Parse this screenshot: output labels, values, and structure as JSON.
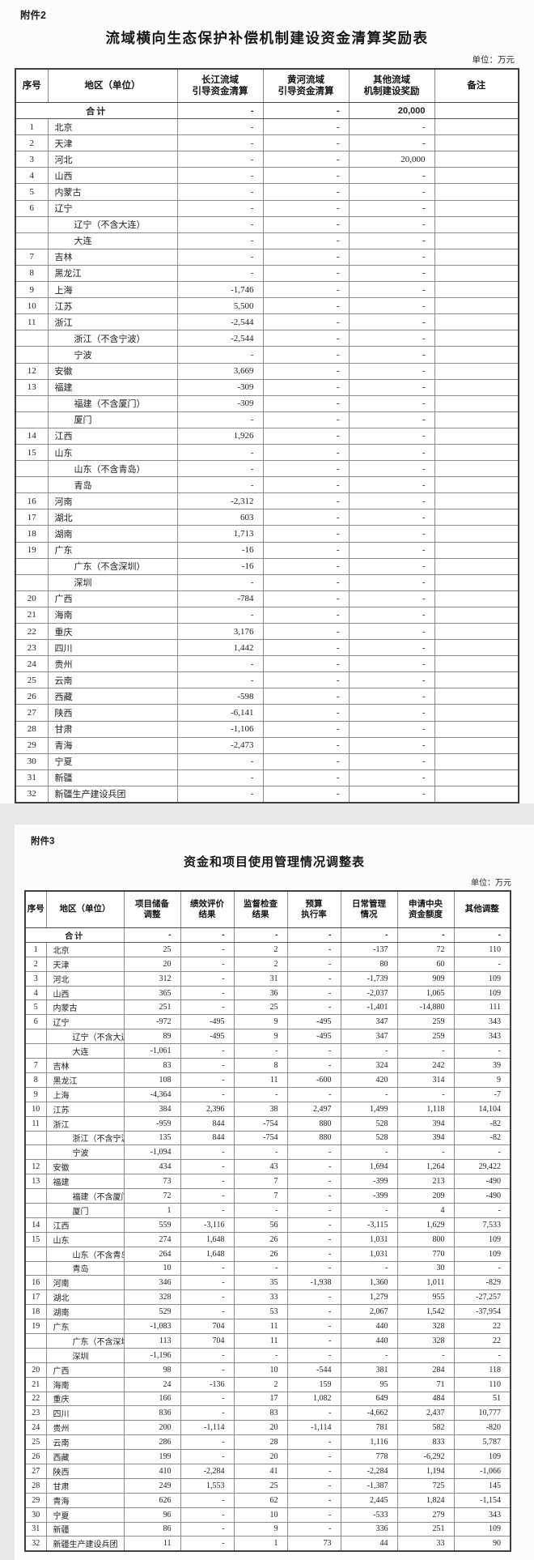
{
  "attachment2": {
    "tag": "附件2",
    "title": "流域横向生态保护补偿机制建设资金清算奖励表",
    "unit": "单位：万元",
    "columns": [
      "序号",
      "地区（单位）",
      "长江流域\n引导资金清算",
      "黄河流域\n引导资金清算",
      "其他流域\n机制建设奖励",
      "备注"
    ],
    "total_row": {
      "label": "合计",
      "values": [
        "-",
        "-",
        "20,000",
        ""
      ]
    },
    "rows": [
      {
        "seq": "1",
        "region": "北京",
        "indent": false,
        "values": [
          "-",
          "-",
          "-",
          ""
        ]
      },
      {
        "seq": "2",
        "region": "天津",
        "indent": false,
        "values": [
          "-",
          "-",
          "-",
          ""
        ]
      },
      {
        "seq": "3",
        "region": "河北",
        "indent": false,
        "values": [
          "-",
          "-",
          "20,000",
          ""
        ]
      },
      {
        "seq": "4",
        "region": "山西",
        "indent": false,
        "values": [
          "-",
          "-",
          "-",
          ""
        ]
      },
      {
        "seq": "5",
        "region": "内蒙古",
        "indent": false,
        "values": [
          "-",
          "-",
          "-",
          ""
        ]
      },
      {
        "seq": "6",
        "region": "辽宁",
        "indent": false,
        "values": [
          "-",
          "-",
          "-",
          ""
        ]
      },
      {
        "seq": "",
        "region": "辽宁（不含大连）",
        "indent": true,
        "values": [
          "-",
          "-",
          "-",
          ""
        ]
      },
      {
        "seq": "",
        "region": "大连",
        "indent": true,
        "values": [
          "-",
          "-",
          "-",
          ""
        ]
      },
      {
        "seq": "7",
        "region": "吉林",
        "indent": false,
        "values": [
          "-",
          "-",
          "-",
          ""
        ]
      },
      {
        "seq": "8",
        "region": "黑龙江",
        "indent": false,
        "values": [
          "-",
          "-",
          "-",
          ""
        ]
      },
      {
        "seq": "9",
        "region": "上海",
        "indent": false,
        "values": [
          "-1,746",
          "-",
          "-",
          ""
        ]
      },
      {
        "seq": "10",
        "region": "江苏",
        "indent": false,
        "values": [
          "5,500",
          "-",
          "-",
          ""
        ]
      },
      {
        "seq": "11",
        "region": "浙江",
        "indent": false,
        "values": [
          "-2,544",
          "-",
          "-",
          ""
        ]
      },
      {
        "seq": "",
        "region": "浙江（不含宁波）",
        "indent": true,
        "values": [
          "-2,544",
          "-",
          "-",
          ""
        ]
      },
      {
        "seq": "",
        "region": "宁波",
        "indent": true,
        "values": [
          "-",
          "-",
          "-",
          ""
        ]
      },
      {
        "seq": "12",
        "region": "安徽",
        "indent": false,
        "values": [
          "3,669",
          "-",
          "-",
          ""
        ]
      },
      {
        "seq": "13",
        "region": "福建",
        "indent": false,
        "values": [
          "-309",
          "-",
          "-",
          ""
        ]
      },
      {
        "seq": "",
        "region": "福建（不含厦门）",
        "indent": true,
        "values": [
          "-309",
          "-",
          "-",
          ""
        ]
      },
      {
        "seq": "",
        "region": "厦门",
        "indent": true,
        "values": [
          "-",
          "-",
          "-",
          ""
        ]
      },
      {
        "seq": "14",
        "region": "江西",
        "indent": false,
        "values": [
          "1,926",
          "-",
          "-",
          ""
        ]
      },
      {
        "seq": "15",
        "region": "山东",
        "indent": false,
        "values": [
          "-",
          "-",
          "-",
          ""
        ]
      },
      {
        "seq": "",
        "region": "山东（不含青岛）",
        "indent": true,
        "values": [
          "-",
          "-",
          "-",
          ""
        ]
      },
      {
        "seq": "",
        "region": "青岛",
        "indent": true,
        "values": [
          "-",
          "-",
          "-",
          ""
        ]
      },
      {
        "seq": "16",
        "region": "河南",
        "indent": false,
        "values": [
          "-2,312",
          "-",
          "-",
          ""
        ]
      },
      {
        "seq": "17",
        "region": "湖北",
        "indent": false,
        "values": [
          "603",
          "-",
          "-",
          ""
        ]
      },
      {
        "seq": "18",
        "region": "湖南",
        "indent": false,
        "values": [
          "1,713",
          "-",
          "-",
          ""
        ]
      },
      {
        "seq": "19",
        "region": "广东",
        "indent": false,
        "values": [
          "-16",
          "-",
          "-",
          ""
        ]
      },
      {
        "seq": "",
        "region": "广东（不含深圳）",
        "indent": true,
        "values": [
          "-16",
          "-",
          "-",
          ""
        ]
      },
      {
        "seq": "",
        "region": "深圳",
        "indent": true,
        "values": [
          "-",
          "-",
          "-",
          ""
        ]
      },
      {
        "seq": "20",
        "region": "广西",
        "indent": false,
        "values": [
          "-784",
          "-",
          "-",
          ""
        ]
      },
      {
        "seq": "21",
        "region": "海南",
        "indent": false,
        "values": [
          "-",
          "-",
          "-",
          ""
        ]
      },
      {
        "seq": "22",
        "region": "重庆",
        "indent": false,
        "values": [
          "3,176",
          "-",
          "-",
          ""
        ]
      },
      {
        "seq": "23",
        "region": "四川",
        "indent": false,
        "values": [
          "1,442",
          "-",
          "-",
          ""
        ]
      },
      {
        "seq": "24",
        "region": "贵州",
        "indent": false,
        "values": [
          "-",
          "-",
          "-",
          ""
        ]
      },
      {
        "seq": "25",
        "region": "云南",
        "indent": false,
        "values": [
          "-",
          "-",
          "-",
          ""
        ]
      },
      {
        "seq": "26",
        "region": "西藏",
        "indent": false,
        "values": [
          "-598",
          "-",
          "-",
          ""
        ]
      },
      {
        "seq": "27",
        "region": "陕西",
        "indent": false,
        "values": [
          "-6,141",
          "-",
          "-",
          ""
        ]
      },
      {
        "seq": "28",
        "region": "甘肃",
        "indent": false,
        "values": [
          "-1,106",
          "-",
          "-",
          ""
        ]
      },
      {
        "seq": "29",
        "region": "青海",
        "indent": false,
        "values": [
          "-2,473",
          "-",
          "-",
          ""
        ]
      },
      {
        "seq": "30",
        "region": "宁夏",
        "indent": false,
        "values": [
          "-",
          "-",
          "-",
          ""
        ]
      },
      {
        "seq": "31",
        "region": "新疆",
        "indent": false,
        "values": [
          "-",
          "-",
          "-",
          ""
        ]
      },
      {
        "seq": "32",
        "region": "新疆生产建设兵团",
        "indent": false,
        "values": [
          "-",
          "-",
          "-",
          ""
        ]
      }
    ]
  },
  "attachment3": {
    "tag": "附件3",
    "title": "资金和项目使用管理情况调整表",
    "unit": "单位：万元",
    "columns": [
      "序号",
      "地区（单位）",
      "项目储备\n调整",
      "绩效评价\n结果",
      "监督检查\n结果",
      "预算\n执行率",
      "日常管理\n情况",
      "申请中央\n资金额度",
      "其他调整"
    ],
    "total_row": {
      "label": "合计",
      "values": [
        "-",
        "-",
        "-",
        "-",
        "-",
        "-",
        "-"
      ]
    },
    "rows": [
      {
        "seq": "1",
        "region": "北京",
        "indent": false,
        "values": [
          "25",
          "-",
          "2",
          "-",
          "-137",
          "72",
          "110"
        ]
      },
      {
        "seq": "2",
        "region": "天津",
        "indent": false,
        "values": [
          "20",
          "-",
          "2",
          "-",
          "80",
          "60",
          "-"
        ]
      },
      {
        "seq": "3",
        "region": "河北",
        "indent": false,
        "values": [
          "312",
          "-",
          "31",
          "-",
          "-1,739",
          "909",
          "109"
        ]
      },
      {
        "seq": "4",
        "region": "山西",
        "indent": false,
        "values": [
          "365",
          "-",
          "36",
          "-",
          "-2,037",
          "1,065",
          "109"
        ]
      },
      {
        "seq": "5",
        "region": "内蒙古",
        "indent": false,
        "values": [
          "251",
          "-",
          "25",
          "-",
          "-1,401",
          "-14,880",
          "111"
        ]
      },
      {
        "seq": "6",
        "region": "辽宁",
        "indent": false,
        "values": [
          "-972",
          "-495",
          "9",
          "-495",
          "347",
          "259",
          "343"
        ]
      },
      {
        "seq": "",
        "region": "辽宁（不含大连）",
        "indent": true,
        "values": [
          "89",
          "-495",
          "9",
          "-495",
          "347",
          "259",
          "343"
        ]
      },
      {
        "seq": "",
        "region": "大连",
        "indent": true,
        "values": [
          "-1,061",
          "-",
          "-",
          "-",
          "-",
          "-",
          "-"
        ]
      },
      {
        "seq": "7",
        "region": "吉林",
        "indent": false,
        "values": [
          "83",
          "-",
          "8",
          "-",
          "324",
          "242",
          "39"
        ]
      },
      {
        "seq": "8",
        "region": "黑龙江",
        "indent": false,
        "values": [
          "108",
          "-",
          "11",
          "-600",
          "420",
          "314",
          "9"
        ]
      },
      {
        "seq": "9",
        "region": "上海",
        "indent": false,
        "values": [
          "-4,364",
          "-",
          "-",
          "-",
          "-",
          "-",
          "-7"
        ]
      },
      {
        "seq": "10",
        "region": "江苏",
        "indent": false,
        "values": [
          "384",
          "2,396",
          "38",
          "2,497",
          "1,499",
          "1,118",
          "14,104"
        ]
      },
      {
        "seq": "11",
        "region": "浙江",
        "indent": false,
        "values": [
          "-959",
          "844",
          "-754",
          "880",
          "528",
          "394",
          "-82"
        ]
      },
      {
        "seq": "",
        "region": "浙江（不含宁波）",
        "indent": true,
        "values": [
          "135",
          "844",
          "-754",
          "880",
          "528",
          "394",
          "-82"
        ]
      },
      {
        "seq": "",
        "region": "宁波",
        "indent": true,
        "values": [
          "-1,094",
          "-",
          "-",
          "-",
          "-",
          "-",
          "-"
        ]
      },
      {
        "seq": "12",
        "region": "安徽",
        "indent": false,
        "values": [
          "434",
          "-",
          "43",
          "-",
          "1,694",
          "1,264",
          "29,422"
        ]
      },
      {
        "seq": "13",
        "region": "福建",
        "indent": false,
        "values": [
          "73",
          "-",
          "7",
          "-",
          "-399",
          "213",
          "-490"
        ]
      },
      {
        "seq": "",
        "region": "福建（不含厦门）",
        "indent": true,
        "values": [
          "72",
          "-",
          "7",
          "-",
          "-399",
          "209",
          "-490"
        ]
      },
      {
        "seq": "",
        "region": "厦门",
        "indent": true,
        "values": [
          "1",
          "-",
          "-",
          "-",
          "-",
          "4",
          "-"
        ]
      },
      {
        "seq": "14",
        "region": "江西",
        "indent": false,
        "values": [
          "559",
          "-3,116",
          "56",
          "-",
          "-3,115",
          "1,629",
          "7,533"
        ]
      },
      {
        "seq": "15",
        "region": "山东",
        "indent": false,
        "values": [
          "274",
          "1,648",
          "26",
          "-",
          "1,031",
          "800",
          "109"
        ]
      },
      {
        "seq": "",
        "region": "山东（不含青岛）",
        "indent": true,
        "values": [
          "264",
          "1,648",
          "26",
          "-",
          "1,031",
          "770",
          "109"
        ]
      },
      {
        "seq": "",
        "region": "青岛",
        "indent": true,
        "values": [
          "10",
          "-",
          "-",
          "-",
          "-",
          "30",
          "-"
        ]
      },
      {
        "seq": "16",
        "region": "河南",
        "indent": false,
        "values": [
          "346",
          "-",
          "35",
          "-1,938",
          "1,360",
          "1,011",
          "-829"
        ]
      },
      {
        "seq": "17",
        "region": "湖北",
        "indent": false,
        "values": [
          "328",
          "-",
          "33",
          "-",
          "1,279",
          "955",
          "-27,257"
        ]
      },
      {
        "seq": "18",
        "region": "湖南",
        "indent": false,
        "values": [
          "529",
          "-",
          "53",
          "-",
          "2,067",
          "1,542",
          "-37,954"
        ]
      },
      {
        "seq": "19",
        "region": "广东",
        "indent": false,
        "values": [
          "-1,083",
          "704",
          "11",
          "-",
          "440",
          "328",
          "22"
        ]
      },
      {
        "seq": "",
        "region": "广东（不含深圳）",
        "indent": true,
        "values": [
          "113",
          "704",
          "11",
          "-",
          "440",
          "328",
          "22"
        ]
      },
      {
        "seq": "",
        "region": "深圳",
        "indent": true,
        "values": [
          "-1,196",
          "-",
          "-",
          "-",
          "-",
          "-",
          "-"
        ]
      },
      {
        "seq": "20",
        "region": "广西",
        "indent": false,
        "values": [
          "98",
          "-",
          "10",
          "-544",
          "381",
          "284",
          "118"
        ]
      },
      {
        "seq": "21",
        "region": "海南",
        "indent": false,
        "values": [
          "24",
          "-136",
          "2",
          "159",
          "95",
          "71",
          "110"
        ]
      },
      {
        "seq": "22",
        "region": "重庆",
        "indent": false,
        "values": [
          "166",
          "-",
          "17",
          "1,082",
          "649",
          "484",
          "51"
        ]
      },
      {
        "seq": "23",
        "region": "四川",
        "indent": false,
        "values": [
          "836",
          "-",
          "83",
          "-",
          "-4,662",
          "2,437",
          "10,777"
        ]
      },
      {
        "seq": "24",
        "region": "贵州",
        "indent": false,
        "values": [
          "200",
          "-1,114",
          "20",
          "-1,114",
          "781",
          "582",
          "-820"
        ]
      },
      {
        "seq": "25",
        "region": "云南",
        "indent": false,
        "values": [
          "286",
          "-",
          "28",
          "-",
          "1,116",
          "833",
          "5,787"
        ]
      },
      {
        "seq": "26",
        "region": "西藏",
        "indent": false,
        "values": [
          "199",
          "-",
          "20",
          "-",
          "778",
          "-6,292",
          "109"
        ]
      },
      {
        "seq": "27",
        "region": "陕西",
        "indent": false,
        "values": [
          "410",
          "-2,284",
          "41",
          "-",
          "-2,284",
          "1,194",
          "-1,066"
        ]
      },
      {
        "seq": "28",
        "region": "甘肃",
        "indent": false,
        "values": [
          "249",
          "1,553",
          "25",
          "-",
          "-1,387",
          "725",
          "145"
        ]
      },
      {
        "seq": "29",
        "region": "青海",
        "indent": false,
        "values": [
          "626",
          "-",
          "62",
          "-",
          "2,445",
          "1,824",
          "-1,154"
        ]
      },
      {
        "seq": "30",
        "region": "宁夏",
        "indent": false,
        "values": [
          "96",
          "-",
          "10",
          "-",
          "-533",
          "279",
          "343"
        ]
      },
      {
        "seq": "31",
        "region": "新疆",
        "indent": false,
        "values": [
          "86",
          "-",
          "9",
          "-",
          "336",
          "251",
          "109"
        ]
      },
      {
        "seq": "32",
        "region": "新疆生产建设兵团",
        "indent": false,
        "values": [
          "11",
          "-",
          "1",
          "73",
          "44",
          "33",
          "90"
        ]
      }
    ]
  }
}
